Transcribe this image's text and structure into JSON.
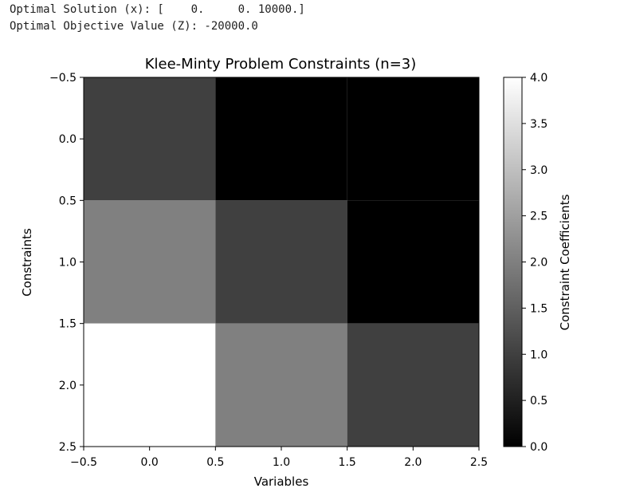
{
  "output": {
    "line1": "Optimal Solution (x): [    0.     0. 10000.]",
    "line2": "Optimal Objective Value (Z): -20000.0"
  },
  "chart_data": {
    "type": "heatmap",
    "title": "Klee-Minty Problem Constraints (n=3)",
    "xlabel": "Variables",
    "ylabel": "Constraints",
    "colorbar_label": "Constraint Coefficients",
    "colormap": "gray",
    "vmin": 0,
    "vmax": 4,
    "xlim": [
      -0.5,
      2.5
    ],
    "ylim": [
      2.5,
      -0.5
    ],
    "x_tick_labels": [
      "−0.5",
      "0.0",
      "0.5",
      "1.0",
      "1.5",
      "2.0",
      "2.5"
    ],
    "y_tick_labels": [
      "−0.5",
      "0.0",
      "0.5",
      "1.0",
      "1.5",
      "2.0",
      "2.5"
    ],
    "colorbar_tick_labels": [
      "0.0",
      "0.5",
      "1.0",
      "1.5",
      "2.0",
      "2.5",
      "3.0",
      "3.5",
      "4.0"
    ],
    "matrix": [
      [
        1,
        0,
        0
      ],
      [
        2,
        1,
        0
      ],
      [
        4,
        2,
        1
      ]
    ],
    "grid": false
  }
}
